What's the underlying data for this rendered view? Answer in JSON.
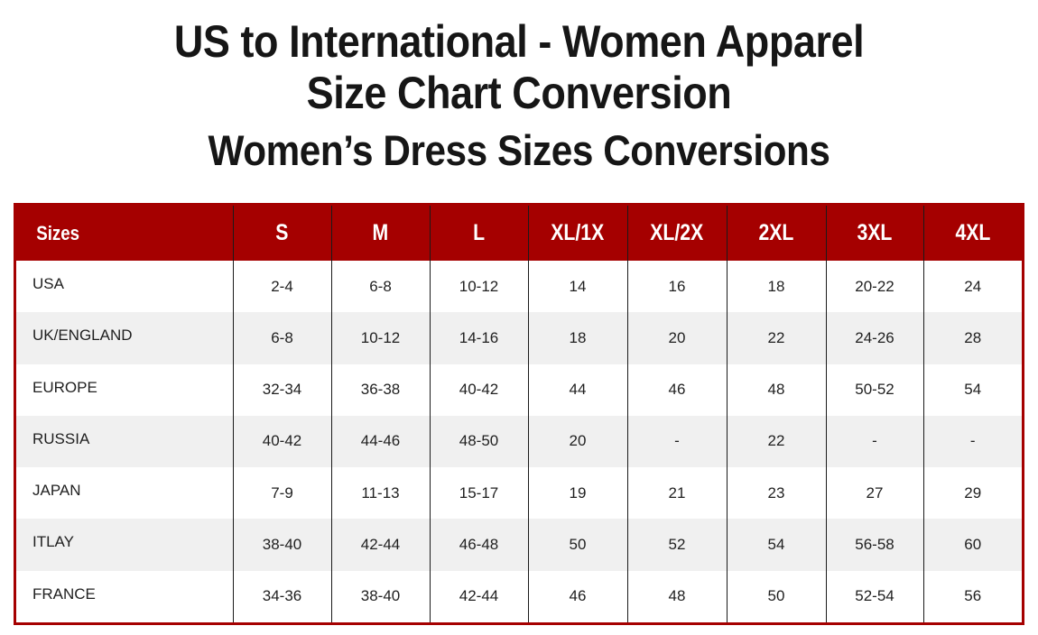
{
  "header": {
    "title_line1": "US to International - Women Apparel",
    "title_line2": "Size Chart Conversion",
    "subtitle": "Women’s Dress Sizes Conversions"
  },
  "colors": {
    "header_bg": "#a50000",
    "stripe_bg": "#f0f0f0"
  },
  "table": {
    "columns": [
      "Sizes",
      "S",
      "M",
      "L",
      "XL/1X",
      "XL/2X",
      "2XL",
      "3XL",
      "4XL"
    ],
    "rows": [
      [
        "USA",
        "2-4",
        "6-8",
        "10-12",
        "14",
        "16",
        "18",
        "20-22",
        "24"
      ],
      [
        "UK/ENGLAND",
        "6-8",
        "10-12",
        "14-16",
        "18",
        "20",
        "22",
        "24-26",
        "28"
      ],
      [
        "EUROPE",
        "32-34",
        "36-38",
        "40-42",
        "44",
        "46",
        "48",
        "50-52",
        "54"
      ],
      [
        "RUSSIA",
        "40-42",
        "44-46",
        "48-50",
        "20",
        "-",
        "22",
        "-",
        "-"
      ],
      [
        "JAPAN",
        "7-9",
        "11-13",
        "15-17",
        "19",
        "21",
        "23",
        "27",
        "29"
      ],
      [
        "ITLAY",
        "38-40",
        "42-44",
        "46-48",
        "50",
        "52",
        "54",
        "56-58",
        "60"
      ],
      [
        "FRANCE",
        "34-36",
        "38-40",
        "42-44",
        "46",
        "48",
        "50",
        "52-54",
        "56"
      ]
    ]
  }
}
